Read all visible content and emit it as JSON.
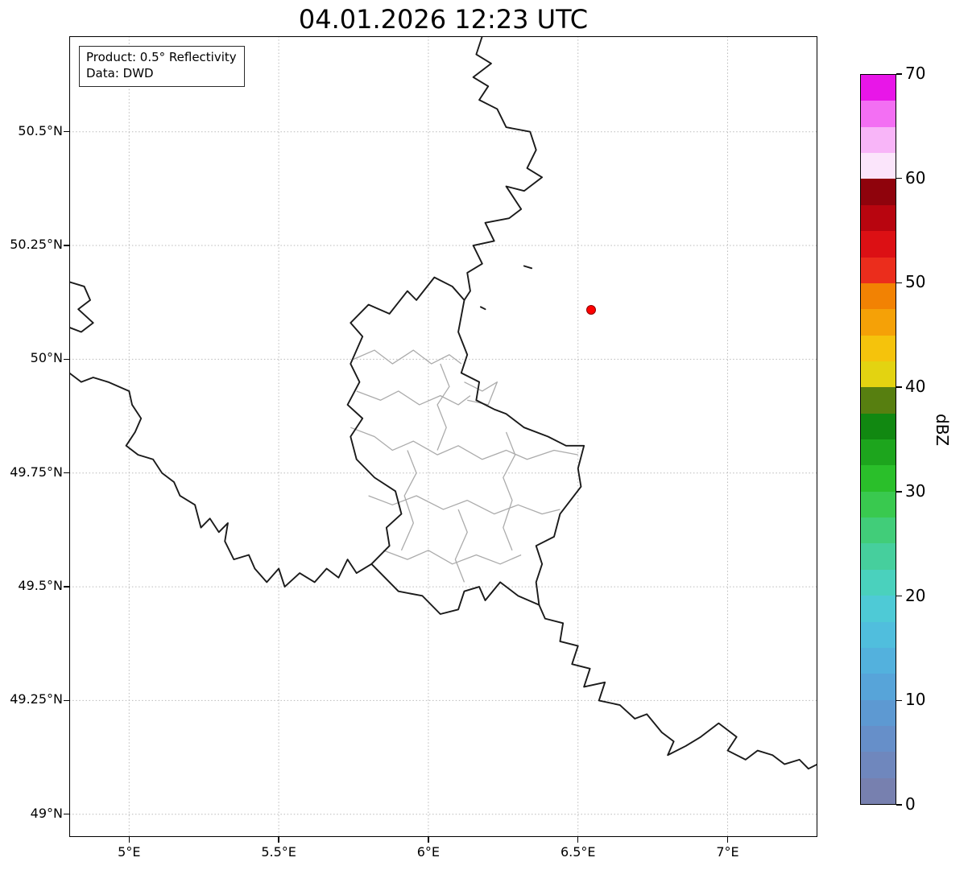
{
  "title": "04.01.2026 12:23 UTC",
  "info_box": {
    "product": "Product: 0.5° Reflectivity",
    "source": "Data: DWD"
  },
  "map": {
    "extent": {
      "lon_min": 4.8,
      "lon_max": 7.3,
      "lat_min": 48.95,
      "lat_max": 50.71
    },
    "x_axis": {
      "ticks": [
        {
          "value": 5.0,
          "label": "5°E"
        },
        {
          "value": 5.5,
          "label": "5.5°E"
        },
        {
          "value": 6.0,
          "label": "6°E"
        },
        {
          "value": 6.5,
          "label": "6.5°E"
        },
        {
          "value": 7.0,
          "label": "7°E"
        }
      ]
    },
    "y_axis": {
      "ticks": [
        {
          "value": 50.5,
          "label": "50.5°N"
        },
        {
          "value": 50.25,
          "label": "50.25°N"
        },
        {
          "value": 50.0,
          "label": "50°N"
        },
        {
          "value": 49.75,
          "label": "49.75°N"
        },
        {
          "value": 49.5,
          "label": "49.5°N"
        },
        {
          "value": 49.25,
          "label": "49.25°N"
        },
        {
          "value": 49.0,
          "label": "49°N"
        }
      ]
    },
    "marker": {
      "lon": 6.545,
      "lat": 50.107,
      "fill": "#ff0000",
      "edge": "#8a0000"
    }
  },
  "colorbar": {
    "label": "dBZ",
    "min": 0,
    "max": 70,
    "band_step": 2.5,
    "ticks": [
      {
        "value": 0,
        "label": "0"
      },
      {
        "value": 10,
        "label": "10"
      },
      {
        "value": 20,
        "label": "20"
      },
      {
        "value": 30,
        "label": "30"
      },
      {
        "value": 40,
        "label": "40"
      },
      {
        "value": 50,
        "label": "50"
      },
      {
        "value": 60,
        "label": "60"
      },
      {
        "value": 70,
        "label": "70"
      }
    ],
    "colors_bottom_to_top": [
      "#7780af",
      "#6f87bd",
      "#668fc9",
      "#5d99d2",
      "#57a4d9",
      "#53b1dd",
      "#50bedd",
      "#4ecad6",
      "#4ad1bd",
      "#46cf9d",
      "#41cd79",
      "#39c94f",
      "#2abf2a",
      "#1da51d",
      "#118811",
      "#577f10",
      "#e3d311",
      "#f5c30c",
      "#f5a107",
      "#f28203",
      "#eb2d1c",
      "#dc1014",
      "#b8050f",
      "#8f030c",
      "#fbe5fb",
      "#f8b5f8",
      "#f36ff3",
      "#e816e8"
    ]
  },
  "styles": {
    "grid_color": "#bababa",
    "border_color": "#1a1a1a",
    "district_border_color": "#ababab"
  }
}
